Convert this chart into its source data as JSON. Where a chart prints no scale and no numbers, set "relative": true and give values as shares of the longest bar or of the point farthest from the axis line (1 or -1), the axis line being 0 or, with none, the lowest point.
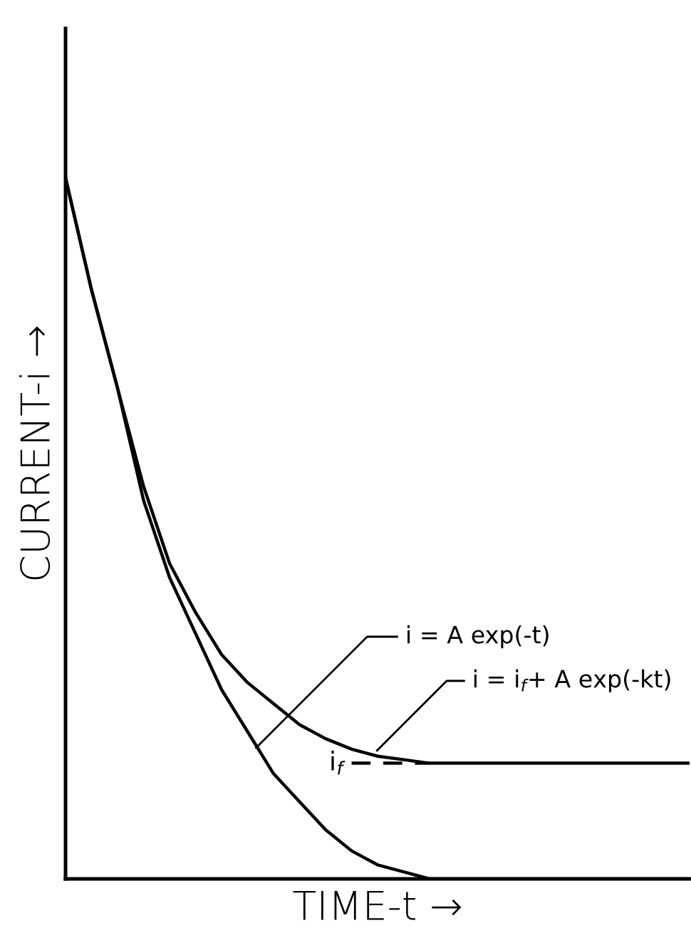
{
  "chart_data": {
    "type": "line",
    "relative": true,
    "xlabel": "TIME-t →",
    "ylabel": "CURRENT-i →",
    "categories": [
      null,
      null,
      null,
      null,
      null,
      null,
      null,
      null,
      null,
      null,
      null,
      null,
      null,
      null,
      null,
      null,
      null,
      null,
      null,
      null,
      null,
      null,
      null,
      null,
      null
    ],
    "series": [
      {
        "color": "#000000",
        "values": [
          1.0,
          0.84,
          0.7,
          0.54,
          0.43,
          0.35,
          0.27,
          0.21,
          0.15,
          0.11,
          0.07,
          0.04,
          0.02,
          0.01,
          0.0,
          0.0,
          0.0,
          0.0,
          0.0,
          0.0,
          0.0,
          0.0,
          0.0,
          0.0,
          0.0
        ]
      },
      {
        "color": "#000000",
        "values": [
          1.0,
          0.84,
          0.7,
          0.56,
          0.45,
          0.38,
          0.32,
          0.28,
          0.25,
          0.22,
          0.2,
          0.185,
          0.175,
          0.17,
          0.165,
          0.165,
          0.165,
          0.165,
          0.165,
          0.165,
          0.165,
          0.165,
          0.165,
          0.165,
          0.165
        ]
      },
      {
        "name": "i$_{f}$",
        "color": "#000000",
        "line_style": "dashed",
        "values": [
          null,
          null,
          null,
          null,
          null,
          null,
          null,
          null,
          null,
          null,
          null,
          0.165,
          0.165,
          0.165,
          0.165,
          null,
          null,
          null,
          null,
          null,
          null,
          null,
          null,
          null,
          null
        ]
      }
    ],
    "annotations": [
      "i = A exp(-t)",
      "i = i$_{f}$+ A exp(-kt)"
    ],
    "grid": false,
    "legend": false,
    "marker": "none"
  }
}
